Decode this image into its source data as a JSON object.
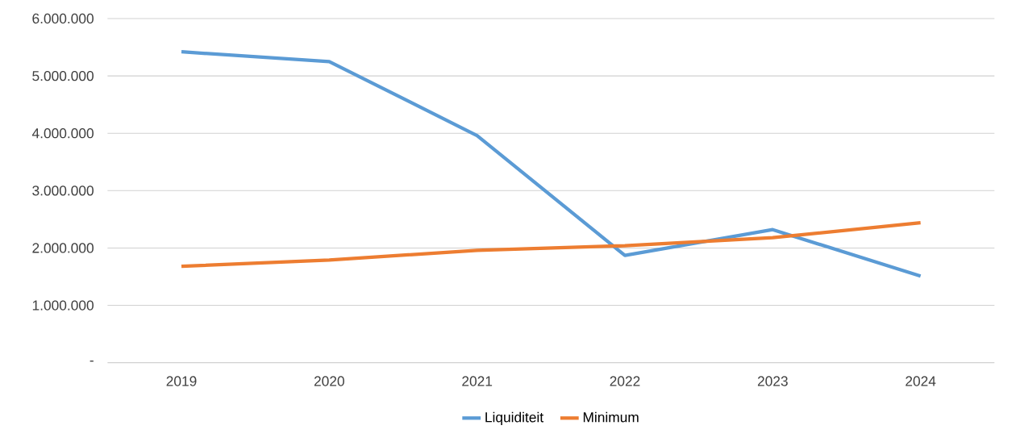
{
  "chart_data": {
    "type": "line",
    "categories": [
      "2019",
      "2020",
      "2021",
      "2022",
      "2023",
      "2024"
    ],
    "series": [
      {
        "name": "Liquiditeit",
        "color": "#5b9bd5",
        "values": [
          5420000,
          5250000,
          3960000,
          1870000,
          2320000,
          1510000
        ]
      },
      {
        "name": "Minimum",
        "color": "#ed7d31",
        "values": [
          1680000,
          1790000,
          1960000,
          2040000,
          2180000,
          2440000
        ]
      }
    ],
    "ylim": [
      0,
      6000000
    ],
    "yticks": [
      {
        "value": 0,
        "label": "-"
      },
      {
        "value": 1000000,
        "label": "1.000.000"
      },
      {
        "value": 2000000,
        "label": "2.000.000"
      },
      {
        "value": 3000000,
        "label": "3.000.000"
      },
      {
        "value": 4000000,
        "label": "4.000.000"
      },
      {
        "value": 5000000,
        "label": "5.000.000"
      },
      {
        "value": 6000000,
        "label": "6.000.000"
      }
    ],
    "grid": "y",
    "legend": "bottom",
    "marker": "none",
    "line_style": "solid"
  }
}
